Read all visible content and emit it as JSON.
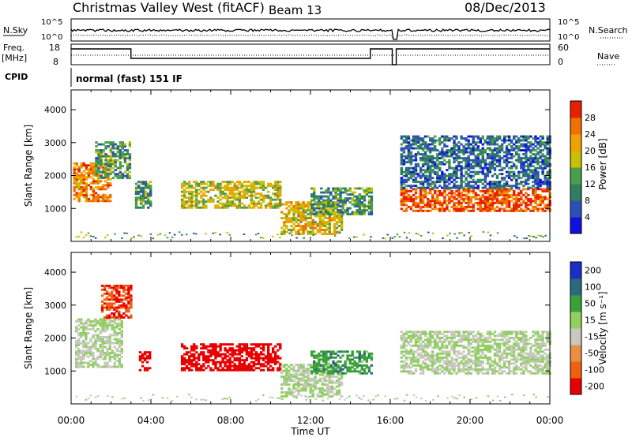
{
  "title": {
    "station": "Christmas Valley West (fitACF)",
    "beam": "Beam 13",
    "date": "08/Dec/2013"
  },
  "top_panels": {
    "nsky_label": "N.Sky",
    "nsearch_label": "N.Search",
    "noise_ticks": [
      "10^5",
      "10^0"
    ],
    "freq_label": "Freq.",
    "freq_unit": "[MHz]",
    "freq_ticks": [
      "18",
      "8"
    ],
    "nave_label": "Nave",
    "nave_ticks": [
      "60",
      "0"
    ],
    "cpid_label": "CPID",
    "cpid_value": "normal (fast) 151 IF"
  },
  "axes": {
    "xlabel": "Time UT",
    "xticks": [
      "00:00",
      "04:00",
      "08:00",
      "12:00",
      "16:00",
      "20:00",
      "00:00"
    ],
    "ylabel": "Slant Range [km]",
    "yticks": [
      "1000",
      "2000",
      "3000",
      "4000"
    ]
  },
  "colorbars": {
    "power": {
      "label": "Power [dB]",
      "ticks": [
        "4",
        "8",
        "12",
        "16",
        "20",
        "24",
        "28"
      ],
      "colors": [
        "#1010e0",
        "#2f4fb8",
        "#2e7f60",
        "#4aa04a",
        "#c8c000",
        "#f0a000",
        "#f07000",
        "#e82000"
      ]
    },
    "velocity": {
      "label": "Velocity [m s⁻¹]",
      "ticks": [
        "200",
        "100",
        "50",
        "15",
        "-15",
        "-50",
        "-100",
        "-200"
      ],
      "colors": [
        "#1a2fc8",
        "#2a6a7a",
        "#3aa03a",
        "#90d060",
        "#c8c8c0",
        "#e89040",
        "#f06010",
        "#e80000"
      ]
    }
  },
  "chart_data": [
    {
      "type": "heatmap",
      "name_on_chart": "Power [dB]",
      "x_range_hours": [
        0,
        24
      ],
      "y_range_km": [
        0,
        4600
      ],
      "value_range": [
        0,
        32
      ],
      "regions": [
        {
          "t0": 0.1,
          "t1": 2.0,
          "r0": 1200,
          "r1": 2400,
          "value": 24
        },
        {
          "t0": 1.2,
          "t1": 3.0,
          "r0": 1900,
          "r1": 3000,
          "value": 12
        },
        {
          "t0": 3.2,
          "t1": 4.0,
          "r0": 1000,
          "r1": 1800,
          "value": 12
        },
        {
          "t0": 5.5,
          "t1": 10.5,
          "r0": 1000,
          "r1": 1800,
          "value": 18
        },
        {
          "t0": 10.5,
          "t1": 13.5,
          "r0": 200,
          "r1": 1200,
          "value": 20
        },
        {
          "t0": 12.0,
          "t1": 15.0,
          "r0": 800,
          "r1": 1600,
          "value": 12
        },
        {
          "t0": 16.5,
          "t1": 24.0,
          "r0": 900,
          "r1": 1600,
          "value": 28
        },
        {
          "t0": 16.5,
          "t1": 24.0,
          "r0": 1600,
          "r1": 3200,
          "value": 8
        }
      ]
    },
    {
      "type": "heatmap",
      "name_on_chart": "Velocity [m s-1]",
      "x_range_hours": [
        0,
        24
      ],
      "y_range_km": [
        0,
        4600
      ],
      "value_range": [
        -200,
        200
      ],
      "regions": [
        {
          "t0": 0.2,
          "t1": 2.5,
          "r0": 1100,
          "r1": 2600,
          "value": 0
        },
        {
          "t0": 1.5,
          "t1": 3.0,
          "r0": 2600,
          "r1": 3600,
          "value": -150
        },
        {
          "t0": 3.4,
          "t1": 4.0,
          "r0": 1000,
          "r1": 1600,
          "value": -200
        },
        {
          "t0": 5.5,
          "t1": 10.5,
          "r0": 1000,
          "r1": 1800,
          "value": -180
        },
        {
          "t0": 10.5,
          "t1": 13.5,
          "r0": 200,
          "r1": 1200,
          "value": 0
        },
        {
          "t0": 12.0,
          "t1": 15.0,
          "r0": 900,
          "r1": 1600,
          "value": 60
        },
        {
          "t0": 16.5,
          "t1": 24.0,
          "r0": 900,
          "r1": 2200,
          "value": 0
        }
      ]
    }
  ]
}
